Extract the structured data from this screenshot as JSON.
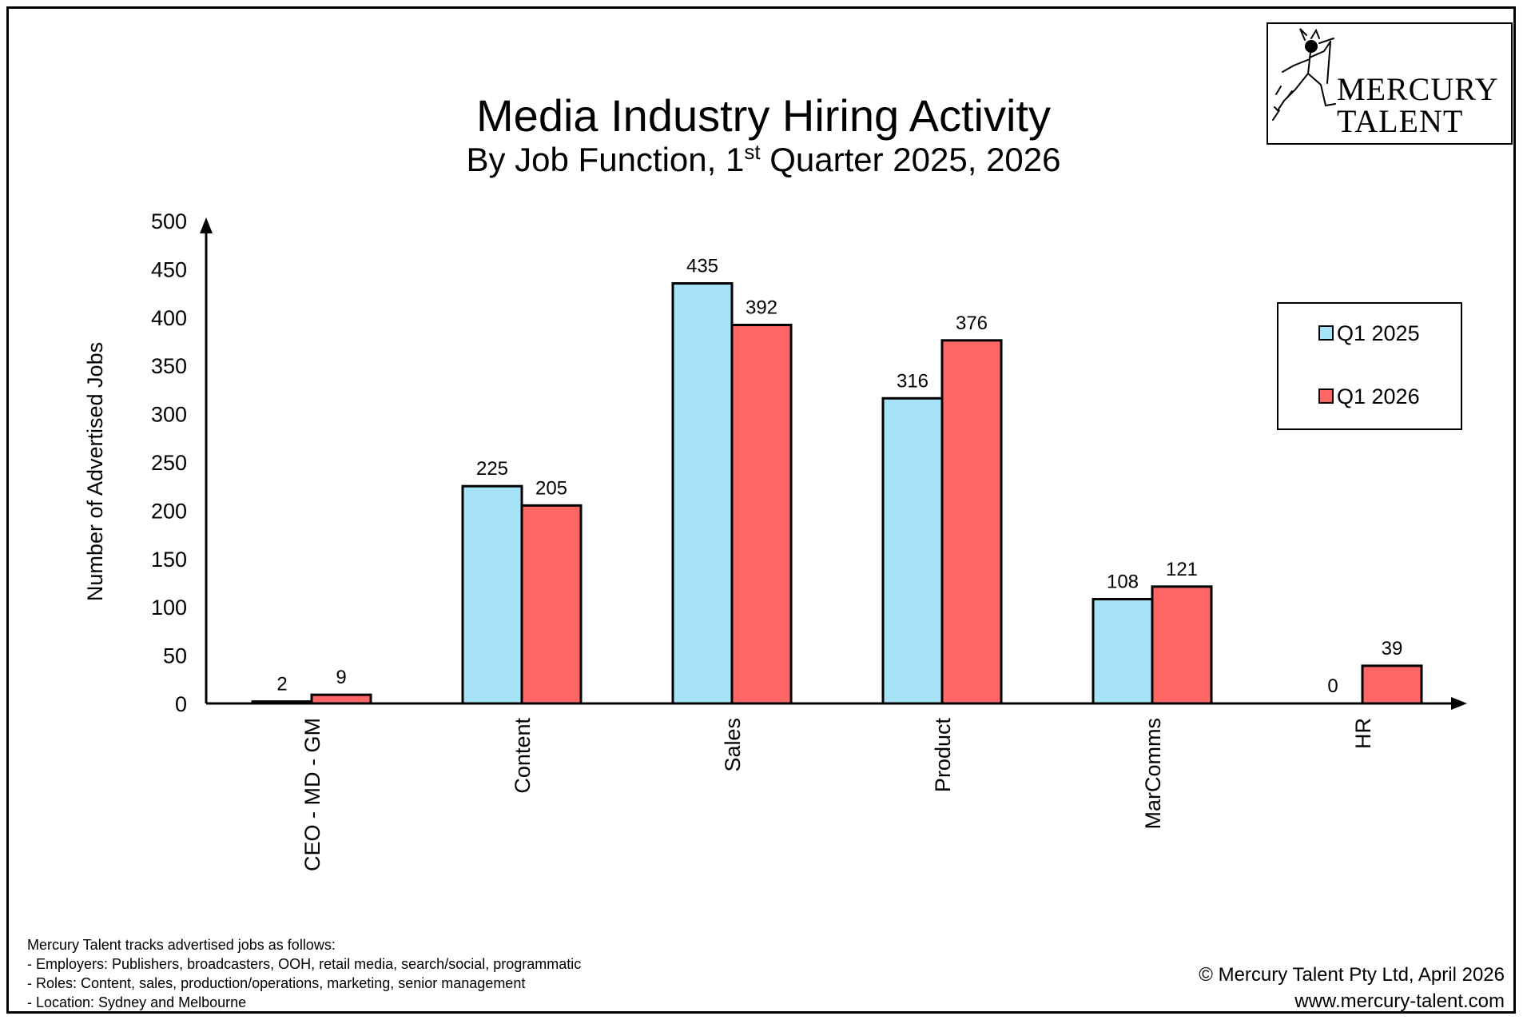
{
  "chart_data": {
    "type": "bar",
    "title": "Media Industry Hiring Activity",
    "subtitle": {
      "before": "By Job Function, 1",
      "sup": "st",
      "after": " Quarter 2025, 2026"
    },
    "xlabel": "",
    "ylabel": "Number of Advertised Jobs",
    "ylim": [
      0,
      500
    ],
    "yticks": [
      0,
      50,
      100,
      150,
      200,
      250,
      300,
      350,
      400,
      450,
      500
    ],
    "categories": [
      "CEO - MD - GM",
      "Content",
      "Sales",
      "Product",
      "MarComms",
      "HR"
    ],
    "series": [
      {
        "name": "Q1 2025",
        "color": "#a6e3f7",
        "values": [
          2,
          225,
          435,
          316,
          108,
          0
        ]
      },
      {
        "name": "Q1 2026",
        "color": "#ff6666",
        "values": [
          9,
          205,
          392,
          376,
          121,
          39
        ]
      }
    ],
    "legend_position": "right",
    "grid": false
  },
  "logo": {
    "line1": "MERCURY",
    "line2": "TALENT",
    "icon": "winged-mercury-icon"
  },
  "notes": [
    "Mercury Talent tracks advertised jobs as follows:",
    "- Employers: Publishers, broadcasters, OOH, retail media, search/social, programmatic",
    "- Roles: Content, sales, production/operations, marketing, senior management",
    "- Location: Sydney and Melbourne"
  ],
  "footer": {
    "copyright": "© Mercury Talent Pty Ltd, April 2026",
    "url": "www.mercury-talent.com"
  }
}
